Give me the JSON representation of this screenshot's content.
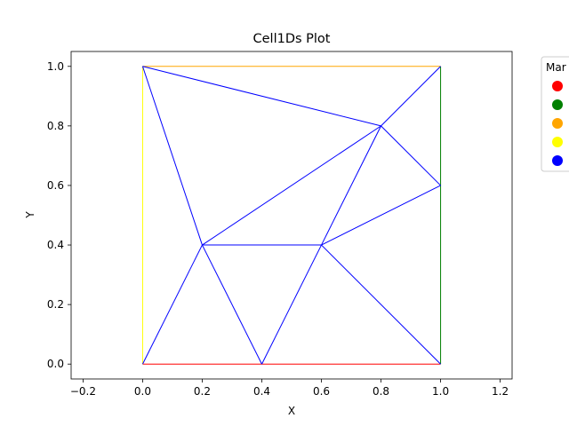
{
  "chart_data": {
    "type": "line",
    "title": "Cell1Ds Plot",
    "xlabel": "X",
    "ylabel": "Y",
    "xlim": [
      -0.24,
      1.24
    ],
    "ylim": [
      -0.05,
      1.05
    ],
    "x_ticks": [
      "−0.2",
      "0.0",
      "0.2",
      "0.4",
      "0.6",
      "0.8",
      "1.0",
      "1.2"
    ],
    "y_ticks": [
      "0.0",
      "0.2",
      "0.4",
      "0.6",
      "0.8",
      "1.0"
    ],
    "x_tick_values": [
      -0.2,
      0.0,
      0.2,
      0.4,
      0.6,
      0.8,
      1.0,
      1.2
    ],
    "y_tick_values": [
      0.0,
      0.2,
      0.4,
      0.6,
      0.8,
      1.0
    ],
    "grid": false,
    "legend": {
      "title": "Mar",
      "placement": "outside-right-top",
      "colors": [
        "#ff0000",
        "#008000",
        "#ffa500",
        "#ffff00",
        "#0000ff"
      ]
    },
    "segments": [
      {
        "from": [
          0.0,
          0.0
        ],
        "to": [
          0.4,
          0.0
        ],
        "color": "#ff0000"
      },
      {
        "from": [
          0.4,
          0.0
        ],
        "to": [
          1.0,
          0.0
        ],
        "color": "#ff0000"
      },
      {
        "from": [
          1.0,
          0.0
        ],
        "to": [
          1.0,
          0.6
        ],
        "color": "#008000"
      },
      {
        "from": [
          1.0,
          0.6
        ],
        "to": [
          1.0,
          1.0
        ],
        "color": "#008000"
      },
      {
        "from": [
          0.0,
          1.0
        ],
        "to": [
          1.0,
          1.0
        ],
        "color": "#ffa500"
      },
      {
        "from": [
          0.0,
          0.0
        ],
        "to": [
          0.0,
          1.0
        ],
        "color": "#ffff00"
      },
      {
        "from": [
          0.0,
          1.0
        ],
        "to": [
          0.2,
          0.4
        ],
        "color": "#0000ff"
      },
      {
        "from": [
          0.0,
          1.0
        ],
        "to": [
          0.8,
          0.8
        ],
        "color": "#0000ff"
      },
      {
        "from": [
          0.8,
          0.8
        ],
        "to": [
          1.0,
          1.0
        ],
        "color": "#0000ff"
      },
      {
        "from": [
          0.8,
          0.8
        ],
        "to": [
          1.0,
          0.6
        ],
        "color": "#0000ff"
      },
      {
        "from": [
          0.8,
          0.8
        ],
        "to": [
          0.2,
          0.4
        ],
        "color": "#0000ff"
      },
      {
        "from": [
          0.8,
          0.8
        ],
        "to": [
          0.6,
          0.4
        ],
        "color": "#0000ff"
      },
      {
        "from": [
          0.2,
          0.4
        ],
        "to": [
          0.6,
          0.4
        ],
        "color": "#0000ff"
      },
      {
        "from": [
          0.6,
          0.4
        ],
        "to": [
          1.0,
          0.6
        ],
        "color": "#0000ff"
      },
      {
        "from": [
          0.2,
          0.4
        ],
        "to": [
          0.0,
          0.0
        ],
        "color": "#0000ff"
      },
      {
        "from": [
          0.2,
          0.4
        ],
        "to": [
          0.4,
          0.0
        ],
        "color": "#0000ff"
      },
      {
        "from": [
          0.6,
          0.4
        ],
        "to": [
          0.4,
          0.0
        ],
        "color": "#0000ff"
      },
      {
        "from": [
          0.6,
          0.4
        ],
        "to": [
          1.0,
          0.0
        ],
        "color": "#0000ff"
      }
    ]
  }
}
